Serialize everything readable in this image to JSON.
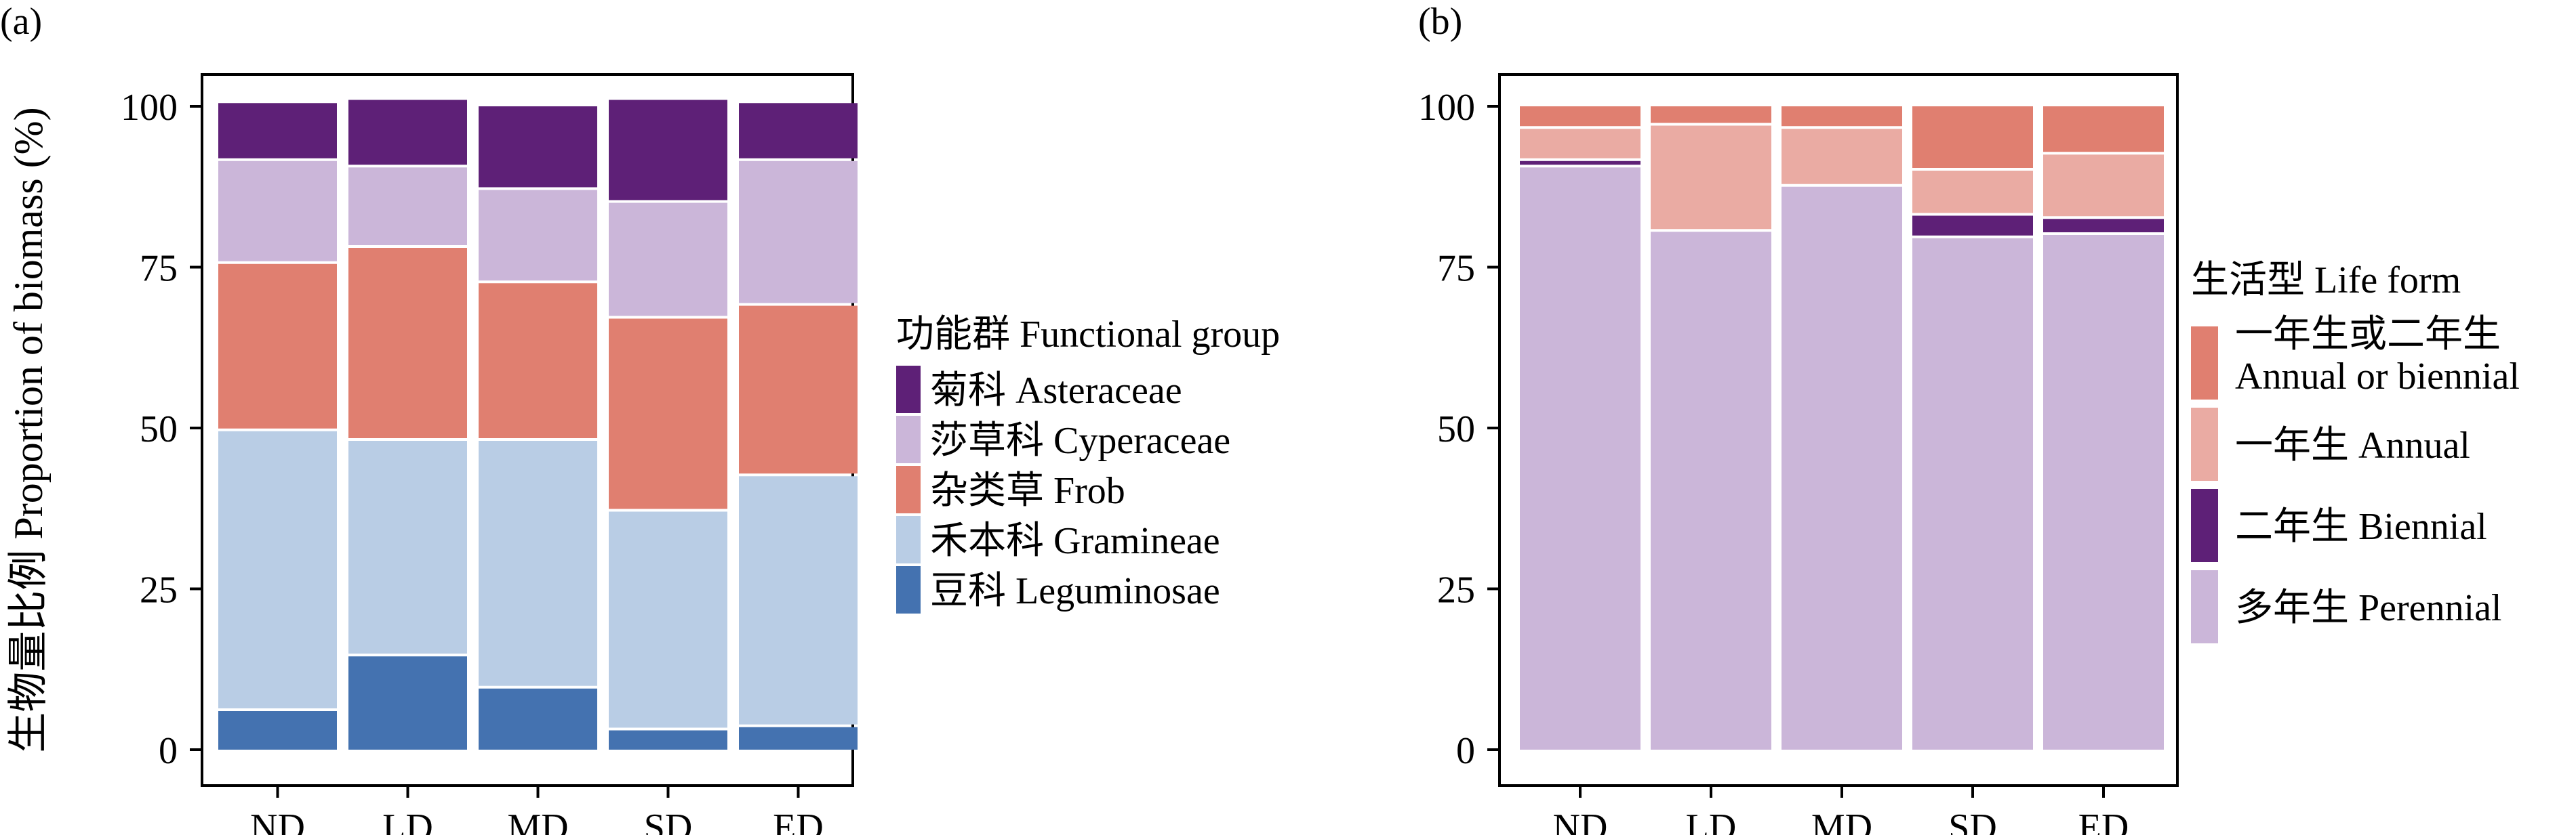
{
  "chart_data": [
    {
      "type": "bar",
      "stacked": true,
      "panel_label": "(a)",
      "categories": [
        "ND",
        "LD",
        "MD",
        "SD",
        "ED"
      ],
      "ylabel": "生物量比例 Proportion of biomass (%)",
      "xlabel": "",
      "ylim": [
        0,
        100
      ],
      "yticks": [
        0,
        25,
        50,
        75,
        100
      ],
      "legend_title": "功能群 Functional group",
      "legend_position": "right",
      "series": [
        {
          "name": "豆科 Leguminosae",
          "color": "#4472B0",
          "values": [
            6,
            14.5,
            9.5,
            3,
            3.5
          ]
        },
        {
          "name": "禾本科 Gramineae",
          "color": "#B9CDE5",
          "values": [
            43.5,
            33.5,
            38.5,
            34,
            39
          ]
        },
        {
          "name": "杂类草 Frob",
          "color": "#E07F70",
          "values": [
            26,
            30,
            24.5,
            30,
            26.5
          ]
        },
        {
          "name": "莎草科 Cyperaceae",
          "color": "#CBB6D9",
          "values": [
            16,
            12.5,
            14.5,
            18,
            22.5
          ]
        },
        {
          "name": "菊科 Asteraceae",
          "color": "#5E2077",
          "values": [
            9,
            10.5,
            13,
            16,
            9
          ]
        }
      ],
      "legend_order": [
        4,
        3,
        2,
        1,
        0
      ]
    },
    {
      "type": "bar",
      "stacked": true,
      "panel_label": "(b)",
      "categories": [
        "ND",
        "LD",
        "MD",
        "SD",
        "ED"
      ],
      "ylabel": "",
      "xlabel": "",
      "ylim": [
        0,
        100
      ],
      "yticks": [
        0,
        25,
        50,
        75,
        100
      ],
      "legend_title": "生活型 Life form",
      "legend_position": "right",
      "series": [
        {
          "name": "多年生 Perennial",
          "color": "#CBB6D9",
          "values": [
            90.5,
            80.5,
            87.5,
            79.5,
            80
          ]
        },
        {
          "name": "二年生 Biennial",
          "color": "#5E2077",
          "values": [
            1,
            0,
            0,
            3.5,
            2.5
          ]
        },
        {
          "name": "一年生 Annual",
          "color": "#EAABA3",
          "values": [
            5,
            16.5,
            9,
            7,
            10
          ]
        },
        {
          "name": "一年生或二年生 Annual or biennial",
          "color": "#E07F70",
          "values": [
            3.5,
            3,
            3.5,
            10,
            7.5
          ]
        }
      ],
      "legend_order": [
        3,
        2,
        1,
        0
      ]
    }
  ]
}
